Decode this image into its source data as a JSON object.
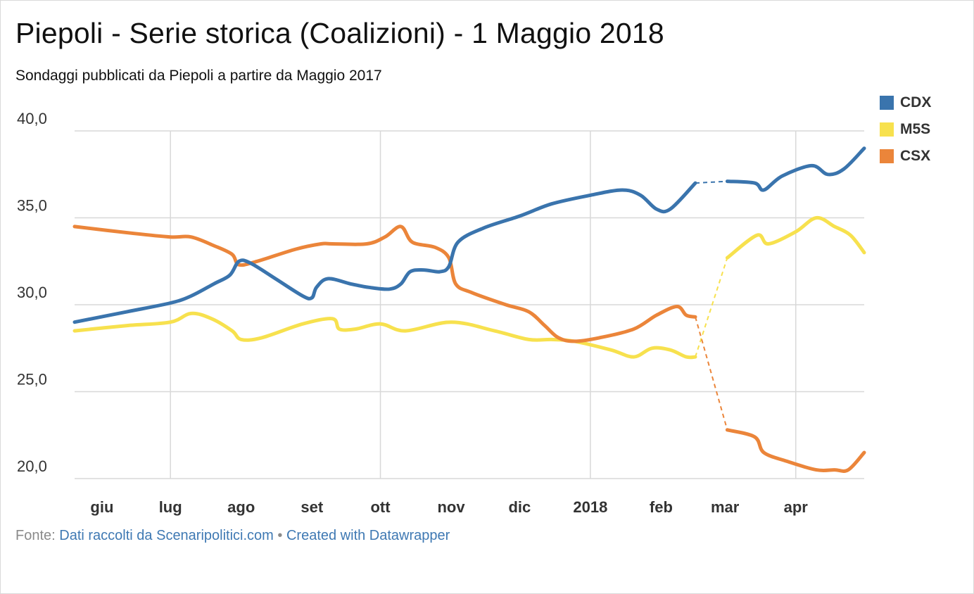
{
  "title": "Piepoli - Serie storica (Coalizioni) - 1 Maggio 2018",
  "subtitle": "Sondaggi pubblicati da Piepoli a partire da Maggio 2017",
  "footer": {
    "source_label": "Fonte:",
    "source_link": "Dati raccolti da Scenaripolitici.com",
    "separator": "•",
    "credit_link": "Created with Datawrapper"
  },
  "chart_data": {
    "type": "line",
    "title": "Piepoli - Serie storica (Coalizioni) - 1 Maggio 2018",
    "xlabel": "",
    "ylabel": "",
    "ylim": [
      20,
      40
    ],
    "xlim": [
      "2017-05-20",
      "2018-05-01"
    ],
    "y_ticks": [
      "20,0",
      "25,0",
      "30,0",
      "35,0",
      "40,0"
    ],
    "y_tick_values": [
      20,
      25,
      30,
      35,
      40
    ],
    "x_ticks": [
      {
        "label": "giu",
        "date": "2017-06-01",
        "bold": false
      },
      {
        "label": "lug",
        "date": "2017-07-01",
        "bold": false
      },
      {
        "label": "ago",
        "date": "2017-08-01",
        "bold": false
      },
      {
        "label": "set",
        "date": "2017-09-01",
        "bold": false
      },
      {
        "label": "ott",
        "date": "2017-10-01",
        "bold": false
      },
      {
        "label": "nov",
        "date": "2017-11-01",
        "bold": false
      },
      {
        "label": "dic",
        "date": "2017-12-01",
        "bold": false
      },
      {
        "label": "2018",
        "date": "2018-01-01",
        "bold": true
      },
      {
        "label": "feb",
        "date": "2018-02-01",
        "bold": false
      },
      {
        "label": "mar",
        "date": "2018-03-01",
        "bold": false
      },
      {
        "label": "apr",
        "date": "2018-04-01",
        "bold": false
      }
    ],
    "vertical_grid_dates": [
      "2017-07-01",
      "2017-10-01",
      "2018-01-01",
      "2018-04-01"
    ],
    "grid": true,
    "legend_position": "top-right",
    "gap": {
      "from": "2018-02-16",
      "to": "2018-03-02",
      "style": "dashed"
    },
    "series": [
      {
        "name": "CDX",
        "color": "#3a74ad",
        "points": [
          [
            "2017-05-20",
            29.0
          ],
          [
            "2017-06-12",
            29.6
          ],
          [
            "2017-07-01",
            30.1
          ],
          [
            "2017-07-10",
            30.5
          ],
          [
            "2017-07-20",
            31.2
          ],
          [
            "2017-07-27",
            31.7
          ],
          [
            "2017-07-31",
            32.5
          ],
          [
            "2017-08-05",
            32.4
          ],
          [
            "2017-08-16",
            31.5
          ],
          [
            "2017-08-28",
            30.5
          ],
          [
            "2017-09-01",
            30.4
          ],
          [
            "2017-09-03",
            31.0
          ],
          [
            "2017-09-08",
            31.5
          ],
          [
            "2017-09-18",
            31.2
          ],
          [
            "2017-09-26",
            31.0
          ],
          [
            "2017-10-05",
            30.9
          ],
          [
            "2017-10-10",
            31.2
          ],
          [
            "2017-10-14",
            31.9
          ],
          [
            "2017-10-20",
            32.0
          ],
          [
            "2017-10-27",
            31.9
          ],
          [
            "2017-10-31",
            32.2
          ],
          [
            "2017-11-04",
            33.6
          ],
          [
            "2017-11-15",
            34.4
          ],
          [
            "2017-12-01",
            35.1
          ],
          [
            "2017-12-15",
            35.8
          ],
          [
            "2018-01-01",
            36.3
          ],
          [
            "2018-01-15",
            36.6
          ],
          [
            "2018-01-23",
            36.3
          ],
          [
            "2018-01-30",
            35.5
          ],
          [
            "2018-02-05",
            35.5
          ],
          [
            "2018-02-16",
            37.0
          ],
          [
            "2018-03-02",
            37.1
          ],
          [
            "2018-03-14",
            37.0
          ],
          [
            "2018-03-18",
            36.6
          ],
          [
            "2018-03-26",
            37.4
          ],
          [
            "2018-04-08",
            38.0
          ],
          [
            "2018-04-15",
            37.5
          ],
          [
            "2018-04-22",
            37.8
          ],
          [
            "2018-05-01",
            39.0
          ]
        ]
      },
      {
        "name": "M5S",
        "color": "#f7e14e",
        "points": [
          [
            "2017-05-20",
            28.5
          ],
          [
            "2017-06-12",
            28.8
          ],
          [
            "2017-07-01",
            29.0
          ],
          [
            "2017-07-10",
            29.5
          ],
          [
            "2017-07-19",
            29.2
          ],
          [
            "2017-07-28",
            28.5
          ],
          [
            "2017-08-01",
            28.0
          ],
          [
            "2017-08-10",
            28.1
          ],
          [
            "2017-08-28",
            28.9
          ],
          [
            "2017-09-10",
            29.2
          ],
          [
            "2017-09-13",
            28.6
          ],
          [
            "2017-09-20",
            28.6
          ],
          [
            "2017-10-01",
            28.9
          ],
          [
            "2017-10-12",
            28.5
          ],
          [
            "2017-11-01",
            29.0
          ],
          [
            "2017-11-20",
            28.5
          ],
          [
            "2017-12-05",
            28.0
          ],
          [
            "2017-12-15",
            28.0
          ],
          [
            "2017-12-25",
            27.9
          ],
          [
            "2018-01-10",
            27.4
          ],
          [
            "2018-01-20",
            27.0
          ],
          [
            "2018-01-28",
            27.5
          ],
          [
            "2018-02-05",
            27.4
          ],
          [
            "2018-02-12",
            27.0
          ],
          [
            "2018-02-16",
            27.0
          ],
          [
            "2018-03-02",
            32.7
          ],
          [
            "2018-03-15",
            34.0
          ],
          [
            "2018-03-20",
            33.5
          ],
          [
            "2018-04-01",
            34.2
          ],
          [
            "2018-04-10",
            35.0
          ],
          [
            "2018-04-18",
            34.5
          ],
          [
            "2018-04-25",
            34.0
          ],
          [
            "2018-05-01",
            33.0
          ]
        ]
      },
      {
        "name": "CSX",
        "color": "#eb853a",
        "points": [
          [
            "2017-05-20",
            34.5
          ],
          [
            "2017-06-15",
            34.1
          ],
          [
            "2017-07-01",
            33.9
          ],
          [
            "2017-07-10",
            33.9
          ],
          [
            "2017-07-20",
            33.4
          ],
          [
            "2017-07-28",
            32.9
          ],
          [
            "2017-07-31",
            32.3
          ],
          [
            "2017-08-08",
            32.5
          ],
          [
            "2017-08-25",
            33.2
          ],
          [
            "2017-09-05",
            33.5
          ],
          [
            "2017-09-10",
            33.5
          ],
          [
            "2017-09-25",
            33.5
          ],
          [
            "2017-10-03",
            33.9
          ],
          [
            "2017-10-10",
            34.5
          ],
          [
            "2017-10-15",
            33.6
          ],
          [
            "2017-10-25",
            33.3
          ],
          [
            "2017-10-31",
            32.7
          ],
          [
            "2017-11-03",
            31.2
          ],
          [
            "2017-11-10",
            30.7
          ],
          [
            "2017-11-25",
            30.0
          ],
          [
            "2017-12-05",
            29.6
          ],
          [
            "2017-12-12",
            28.8
          ],
          [
            "2017-12-18",
            28.1
          ],
          [
            "2017-12-25",
            27.9
          ],
          [
            "2018-01-05",
            28.1
          ],
          [
            "2018-01-20",
            28.6
          ],
          [
            "2018-01-30",
            29.4
          ],
          [
            "2018-02-08",
            29.9
          ],
          [
            "2018-02-12",
            29.4
          ],
          [
            "2018-02-16",
            29.3
          ],
          [
            "2018-03-02",
            22.8
          ],
          [
            "2018-03-14",
            22.4
          ],
          [
            "2018-03-18",
            21.5
          ],
          [
            "2018-03-28",
            21.0
          ],
          [
            "2018-04-10",
            20.5
          ],
          [
            "2018-04-18",
            20.5
          ],
          [
            "2018-04-24",
            20.5
          ],
          [
            "2018-05-01",
            21.5
          ]
        ]
      }
    ]
  }
}
